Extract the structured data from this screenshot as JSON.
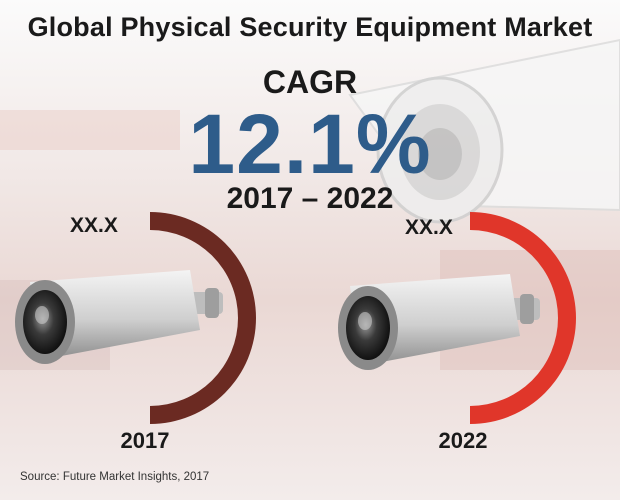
{
  "title": "Global Physical Security Equipment Market",
  "cagr": {
    "label": "CAGR",
    "value": "12.1%",
    "period": "2017 – 2022"
  },
  "chart_data": {
    "type": "pie",
    "categories": [
      "2017",
      "2022"
    ],
    "values": [
      "XX.X",
      "XX.X"
    ],
    "colors": {
      "2017": "#6b2a22",
      "2022": "#e0362a",
      "accent": "#2e5c8a"
    }
  },
  "source": "Source: Future Market Insights, 2017"
}
